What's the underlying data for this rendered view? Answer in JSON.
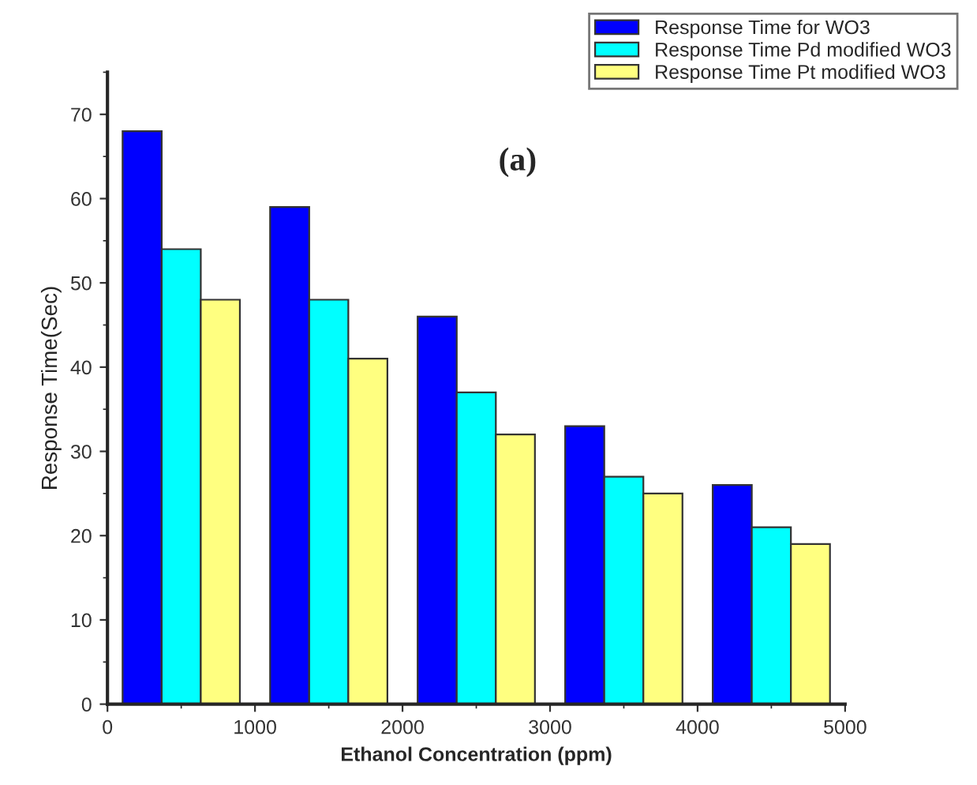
{
  "chart_data": {
    "type": "bar",
    "xlabel": "Ethanol Concentration (ppm)",
    "ylabel": "Response Time(Sec)",
    "x": [
      500,
      1500,
      2500,
      3500,
      4500
    ],
    "series": [
      {
        "name": "Response Time for WO3",
        "color": "#0000ff",
        "values": [
          68,
          59,
          46,
          33,
          26
        ]
      },
      {
        "name": "Response Time Pd modified WO3",
        "color": "#00ffff",
        "values": [
          54,
          48,
          37,
          27,
          21
        ]
      },
      {
        "name": "Response Time Pt modified WO3",
        "color": "#ffff80",
        "values": [
          48,
          41,
          32,
          25,
          19
        ]
      }
    ],
    "xlim": [
      0,
      5000
    ],
    "xticks": [
      0,
      1000,
      2000,
      3000,
      4000,
      5000
    ],
    "ylim": [
      0,
      75
    ],
    "yticks": [
      0,
      10,
      20,
      30,
      40,
      50,
      60,
      70
    ],
    "annotations": [
      "(a)"
    ],
    "grid": false,
    "legend": "top right"
  }
}
